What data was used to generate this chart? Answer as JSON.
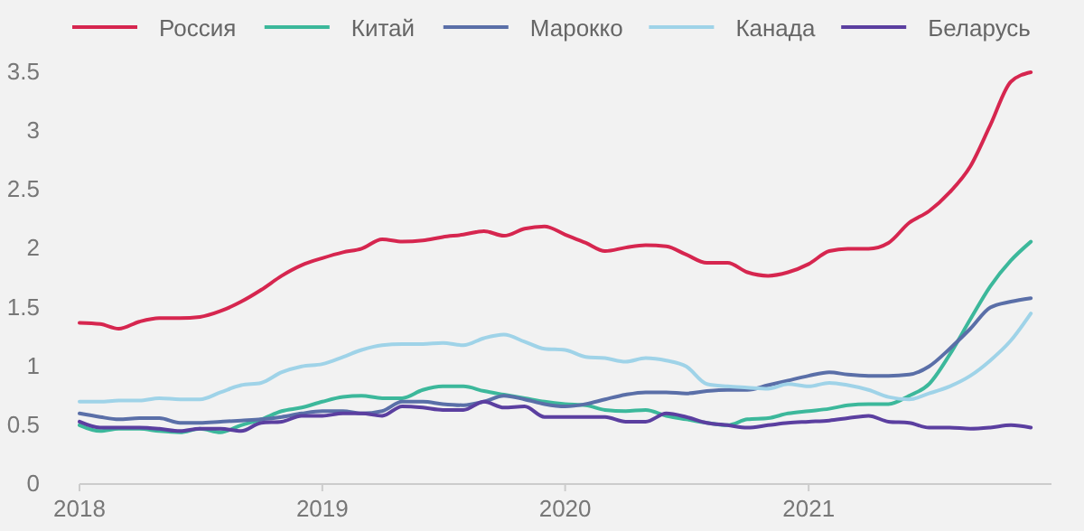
{
  "chart_data": {
    "type": "line",
    "x": [
      "2018-01",
      "2018-02",
      "2018-03",
      "2018-04",
      "2018-05",
      "2018-06",
      "2018-07",
      "2018-08",
      "2018-09",
      "2018-10",
      "2018-11",
      "2018-12",
      "2019-01",
      "2019-02",
      "2019-03",
      "2019-04",
      "2019-05",
      "2019-06",
      "2019-07",
      "2019-08",
      "2019-09",
      "2019-10",
      "2019-11",
      "2019-12",
      "2020-01",
      "2020-02",
      "2020-03",
      "2020-04",
      "2020-05",
      "2020-06",
      "2020-07",
      "2020-08",
      "2020-09",
      "2020-10",
      "2020-11",
      "2020-12",
      "2021-01",
      "2021-02",
      "2021-03",
      "2021-04",
      "2021-05",
      "2021-06",
      "2021-07",
      "2021-08",
      "2021-09",
      "2021-10",
      "2021-11",
      "2021-12"
    ],
    "series": [
      {
        "name": "Россия",
        "color": "#d6264f",
        "values": [
          1.37,
          1.36,
          1.32,
          1.38,
          1.41,
          1.41,
          1.42,
          1.47,
          1.55,
          1.65,
          1.77,
          1.86,
          1.92,
          1.97,
          2.0,
          2.08,
          2.06,
          2.07,
          2.1,
          2.12,
          2.15,
          2.11,
          2.17,
          2.19,
          2.12,
          2.05,
          1.98,
          2.01,
          2.03,
          2.02,
          1.95,
          1.88,
          1.88,
          1.8,
          1.77,
          1.8,
          1.87,
          1.98,
          2.0,
          2.0,
          2.05,
          2.22,
          2.32,
          2.48,
          2.7,
          3.05,
          3.42,
          3.5
        ]
      },
      {
        "name": "Китай",
        "color": "#3cb89b",
        "values": [
          0.5,
          0.45,
          0.47,
          0.47,
          0.45,
          0.44,
          0.47,
          0.44,
          0.5,
          0.55,
          0.62,
          0.65,
          0.7,
          0.74,
          0.75,
          0.73,
          0.73,
          0.8,
          0.83,
          0.83,
          0.79,
          0.76,
          0.73,
          0.7,
          0.68,
          0.67,
          0.63,
          0.62,
          0.63,
          0.58,
          0.55,
          0.52,
          0.5,
          0.55,
          0.56,
          0.6,
          0.62,
          0.64,
          0.67,
          0.68,
          0.68,
          0.75,
          0.85,
          1.1,
          1.4,
          1.68,
          1.9,
          2.06
        ]
      },
      {
        "name": "Марокко",
        "color": "#5a6fa8",
        "values": [
          0.6,
          0.57,
          0.55,
          0.56,
          0.56,
          0.52,
          0.52,
          0.53,
          0.54,
          0.55,
          0.57,
          0.6,
          0.62,
          0.62,
          0.6,
          0.62,
          0.7,
          0.7,
          0.68,
          0.67,
          0.7,
          0.75,
          0.72,
          0.68,
          0.66,
          0.68,
          0.72,
          0.76,
          0.78,
          0.78,
          0.77,
          0.79,
          0.8,
          0.8,
          0.84,
          0.88,
          0.92,
          0.95,
          0.93,
          0.92,
          0.92,
          0.93,
          1.0,
          1.15,
          1.32,
          1.5,
          1.55,
          1.58
        ]
      },
      {
        "name": "Канада",
        "color": "#9fd3e8",
        "values": [
          0.7,
          0.7,
          0.71,
          0.71,
          0.73,
          0.72,
          0.72,
          0.78,
          0.84,
          0.86,
          0.95,
          1.0,
          1.02,
          1.08,
          1.14,
          1.18,
          1.19,
          1.19,
          1.2,
          1.18,
          1.24,
          1.27,
          1.21,
          1.15,
          1.14,
          1.08,
          1.07,
          1.04,
          1.07,
          1.05,
          1.0,
          0.85,
          0.83,
          0.82,
          0.81,
          0.85,
          0.83,
          0.86,
          0.84,
          0.8,
          0.74,
          0.72,
          0.77,
          0.83,
          0.92,
          1.05,
          1.22,
          1.45
        ]
      },
      {
        "name": "Беларусь",
        "color": "#5b3fa0",
        "values": [
          0.53,
          0.48,
          0.48,
          0.48,
          0.47,
          0.45,
          0.47,
          0.47,
          0.45,
          0.52,
          0.53,
          0.58,
          0.58,
          0.6,
          0.6,
          0.58,
          0.66,
          0.65,
          0.63,
          0.63,
          0.7,
          0.65,
          0.66,
          0.57,
          0.57,
          0.57,
          0.57,
          0.53,
          0.53,
          0.6,
          0.57,
          0.52,
          0.5,
          0.48,
          0.5,
          0.52,
          0.53,
          0.54,
          0.56,
          0.58,
          0.53,
          0.52,
          0.48,
          0.48,
          0.47,
          0.48,
          0.5,
          0.48
        ]
      }
    ],
    "xlim": [
      "2018-01",
      "2022-01"
    ],
    "xticks": [
      {
        "value": "2018-01",
        "label": "2018"
      },
      {
        "value": "2019-01",
        "label": "2019"
      },
      {
        "value": "2020-01",
        "label": "2020"
      },
      {
        "value": "2021-01",
        "label": "2021"
      }
    ],
    "ylim": [
      0,
      3.5
    ],
    "yticks": [
      0,
      0.5,
      1,
      1.5,
      2,
      2.5,
      3,
      3.5
    ],
    "grid": false,
    "legend": "top",
    "marker": "none",
    "line_style": "solid"
  }
}
